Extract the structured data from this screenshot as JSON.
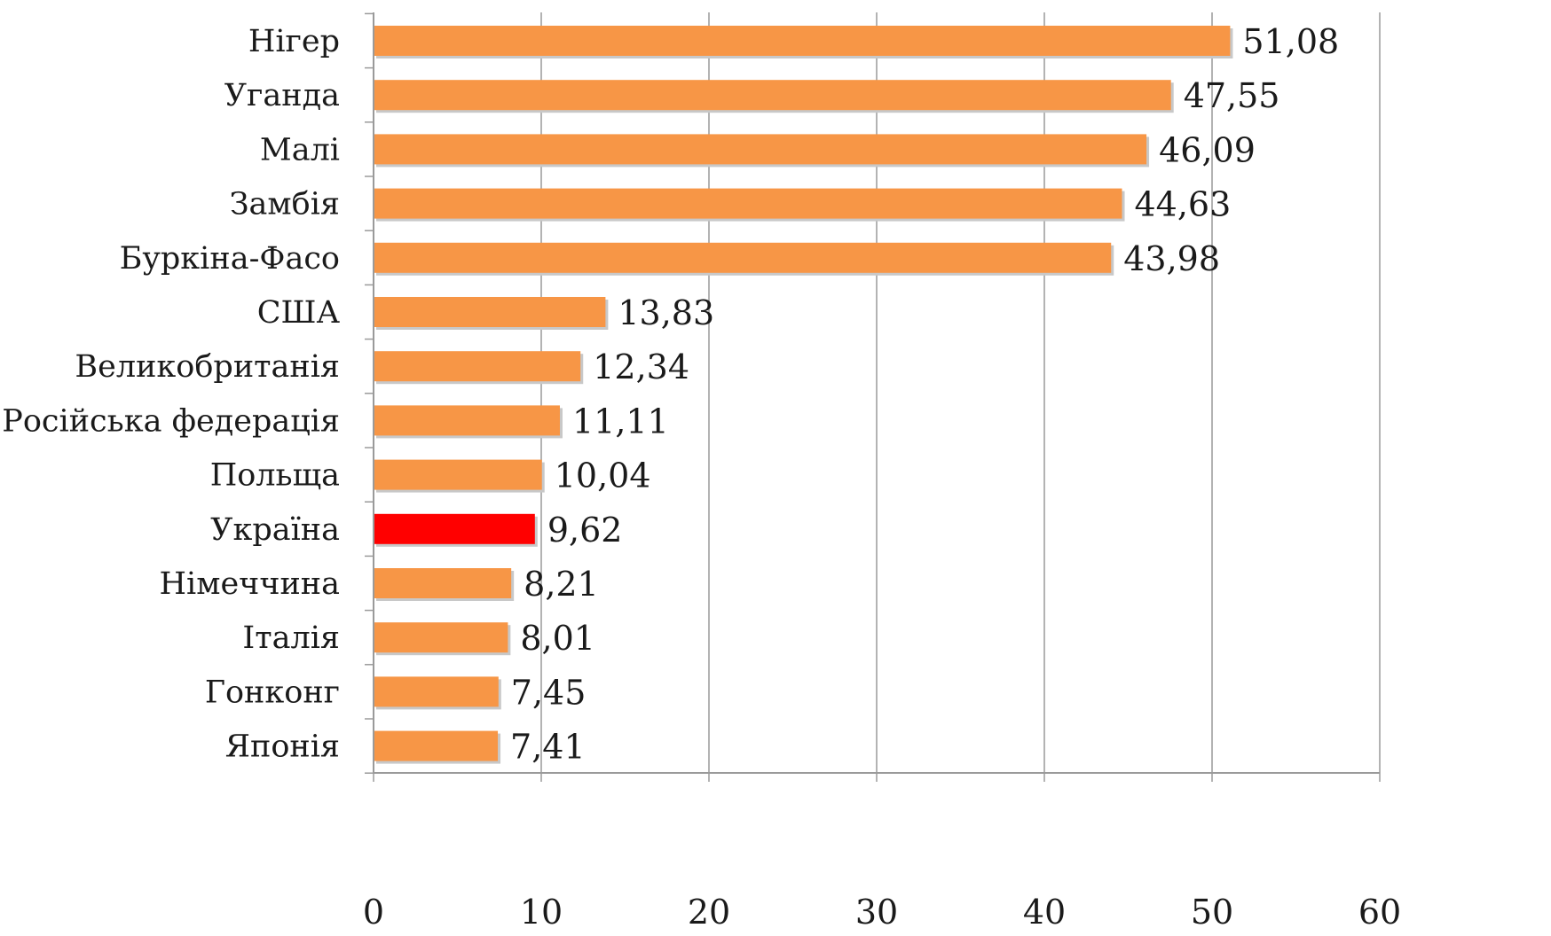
{
  "chart_data": {
    "type": "bar",
    "orientation": "horizontal",
    "title": "",
    "xlabel": "",
    "ylabel": "",
    "categories": [
      "Нігер",
      "Уганда",
      "Малі",
      "Замбія",
      "Буркіна-Фасо",
      "США",
      "Великобританія",
      "Російська федерація",
      "Польща",
      "Україна",
      "Німеччина",
      "Італія",
      "Гонконг",
      "Японія"
    ],
    "values": [
      51.08,
      47.55,
      46.09,
      44.63,
      43.98,
      13.83,
      12.34,
      11.11,
      10.04,
      9.62,
      8.21,
      8.01,
      7.45,
      7.41
    ],
    "value_labels": [
      "51,08",
      "47,55",
      "46,09",
      "44,63",
      "43,98",
      "13,83",
      "12,34",
      "11,11",
      "10,04",
      "9,62",
      "8,21",
      "8,01",
      "7,45",
      "7,41"
    ],
    "highlight_index": 9,
    "xlim": [
      0,
      60
    ],
    "xticks": [
      0,
      10,
      20,
      30,
      40,
      50,
      60
    ],
    "xtick_labels": [
      "0",
      "10",
      "20",
      "30",
      "40",
      "50",
      "60"
    ],
    "grid": true,
    "legend": "none",
    "colors": {
      "bar": "#f79646",
      "highlight_bar": "#ff0000",
      "highlight_label": "#e8252b",
      "grid": "#9a9a9a",
      "text": "#1a1a1a"
    }
  }
}
